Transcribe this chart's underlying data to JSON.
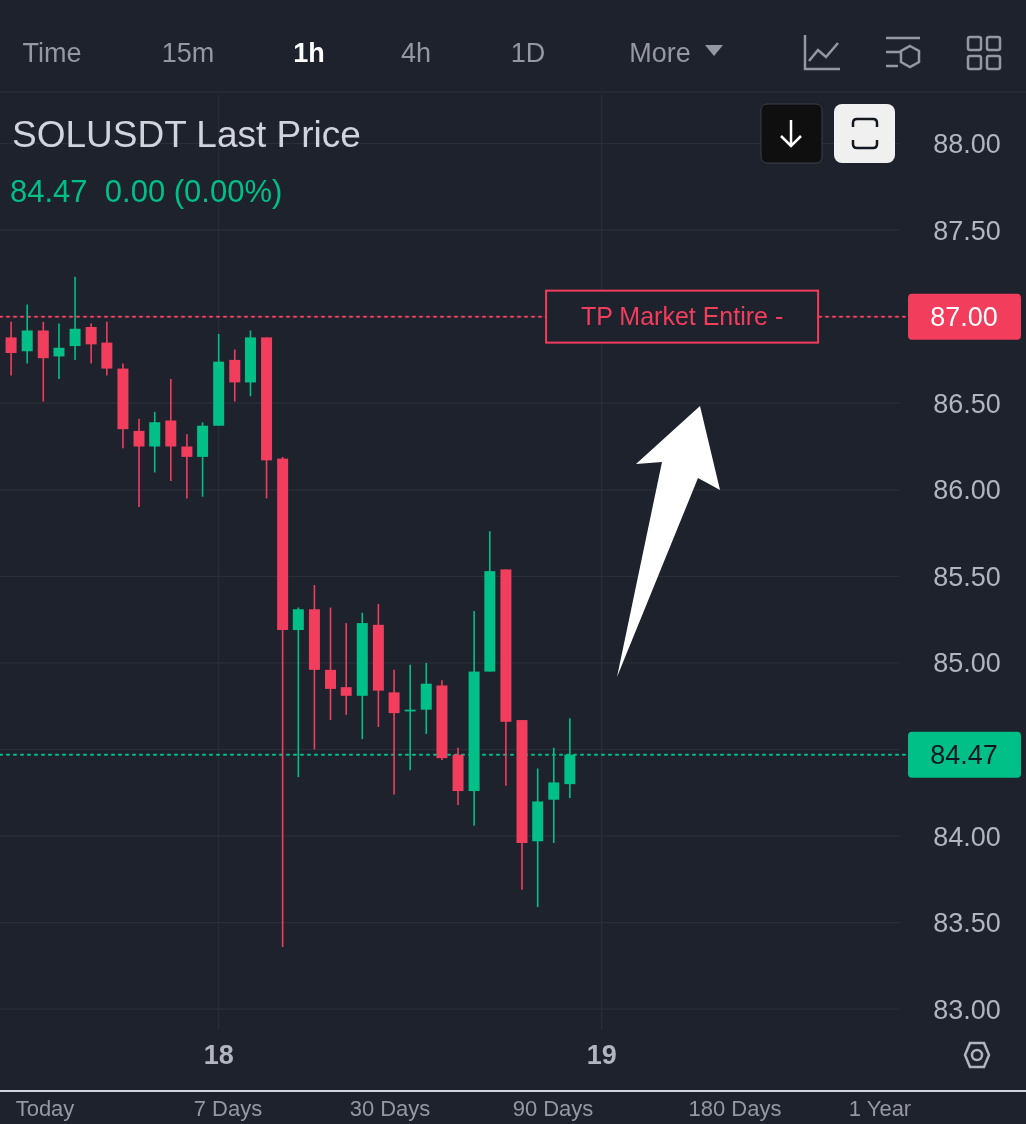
{
  "chart_data": {
    "type": "candlestick",
    "title": "SOLUSDT Last Price",
    "subtitle": "84.47  0.00 (0.00%)",
    "x": [
      17.458,
      17.5,
      17.542,
      17.583,
      17.625,
      17.667,
      17.708,
      17.75,
      17.792,
      17.833,
      17.875,
      17.917,
      17.958,
      18,
      18.042,
      18.083,
      18.125,
      18.167,
      18.208,
      18.25,
      18.292,
      18.333,
      18.375,
      18.417,
      18.458,
      18.5,
      18.542,
      18.583,
      18.625,
      18.667,
      18.708,
      18.75,
      18.792,
      18.833,
      18.875,
      18.917
    ],
    "ohlc": [
      [
        86.88,
        86.97,
        86.66,
        86.79
      ],
      [
        86.8,
        87.07,
        86.73,
        86.92
      ],
      [
        86.92,
        86.97,
        86.51,
        86.76
      ],
      [
        86.77,
        86.96,
        86.64,
        86.82
      ],
      [
        86.83,
        87.23,
        86.75,
        86.93
      ],
      [
        86.94,
        86.96,
        86.73,
        86.84
      ],
      [
        86.85,
        86.97,
        86.66,
        86.7
      ],
      [
        86.7,
        86.73,
        86.24,
        86.35
      ],
      [
        86.34,
        86.41,
        85.9,
        86.25
      ],
      [
        86.25,
        86.45,
        86.1,
        86.39
      ],
      [
        86.4,
        86.64,
        86.05,
        86.25
      ],
      [
        86.25,
        86.32,
        85.95,
        86.19
      ],
      [
        86.19,
        86.39,
        85.96,
        86.37
      ],
      [
        86.37,
        86.9,
        86.37,
        86.74
      ],
      [
        86.75,
        86.81,
        86.51,
        86.62
      ],
      [
        86.62,
        86.92,
        86.54,
        86.88
      ],
      [
        86.88,
        86.88,
        85.95,
        86.17
      ],
      [
        86.18,
        86.19,
        83.36,
        85.19
      ],
      [
        85.19,
        85.32,
        84.34,
        85.31
      ],
      [
        85.31,
        85.45,
        84.5,
        84.96
      ],
      [
        84.96,
        85.32,
        84.67,
        84.85
      ],
      [
        84.86,
        85.23,
        84.7,
        84.81
      ],
      [
        84.81,
        85.29,
        84.56,
        85.23
      ],
      [
        85.22,
        85.34,
        84.63,
        84.84
      ],
      [
        84.83,
        84.96,
        84.24,
        84.71
      ],
      [
        84.72,
        84.99,
        84.38,
        84.73
      ],
      [
        84.73,
        85.0,
        84.59,
        84.88
      ],
      [
        84.87,
        84.9,
        84.44,
        84.45
      ],
      [
        84.47,
        84.51,
        84.18,
        84.26
      ],
      [
        84.26,
        85.3,
        84.06,
        84.95
      ],
      [
        84.95,
        85.76,
        84.95,
        85.53
      ],
      [
        85.54,
        85.54,
        84.29,
        84.66
      ],
      [
        84.67,
        84.67,
        83.69,
        83.96
      ],
      [
        83.97,
        84.39,
        83.59,
        84.2
      ],
      [
        84.21,
        84.51,
        83.96,
        84.31
      ],
      [
        84.3,
        84.68,
        84.22,
        84.47
      ]
    ],
    "colors": [
      "#f23d5c",
      "#00c087",
      "#f23d5c",
      "#00c087",
      "#00c087",
      "#f23d5c",
      "#f23d5c",
      "#f23d5c",
      "#f23d5c",
      "#00c087",
      "#f23d5c",
      "#f23d5c",
      "#00c087",
      "#00c087",
      "#f23d5c",
      "#00c087",
      "#f23d5c",
      "#f23d5c",
      "#00c087",
      "#f23d5c",
      "#f23d5c",
      "#f23d5c",
      "#00c087",
      "#f23d5c",
      "#f23d5c",
      "#00c087",
      "#00c087",
      "#f23d5c",
      "#f23d5c",
      "#00c087",
      "#00c087",
      "#f23d5c",
      "#f23d5c",
      "#00c087",
      "#00c087",
      "#00c087"
    ],
    "xlim": [
      17.429,
      19.779
    ],
    "xticks": [
      18,
      19
    ],
    "ylim": [
      82.88,
      88.28
    ],
    "yticks": [
      {
        "value": 83,
        "label": "83.00"
      },
      {
        "value": 83.5,
        "label": "83.50"
      },
      {
        "value": 84,
        "label": "84.00"
      },
      {
        "value": 84.5,
        "label": null
      },
      {
        "value": 85,
        "label": "85.00"
      },
      {
        "value": 85.5,
        "label": "85.50"
      },
      {
        "value": 86,
        "label": "86.00"
      },
      {
        "value": 86.5,
        "label": "86.50"
      },
      {
        "value": 87,
        "label": "87.00"
      },
      {
        "value": 87.5,
        "label": "87.50"
      },
      {
        "value": 88,
        "label": "88.00"
      }
    ],
    "grid": true,
    "ref_lines": [
      {
        "axis": "y",
        "value": 87,
        "label": "87.00",
        "color": "#f23d5c",
        "line_style": "dotted"
      },
      {
        "axis": "y",
        "value": 84.47,
        "label": "84.47",
        "color": "#00c087",
        "line_style": "dotted"
      }
    ],
    "annotations": [
      {
        "text": "TP Market Entire -",
        "x": 19.21,
        "y": 87
      },
      "Time",
      "15m",
      "1h",
      "4h",
      "1D",
      "More",
      "Today",
      "7 Days",
      "30 Days",
      "90 Days",
      "180 Days",
      "1 Year"
    ]
  }
}
